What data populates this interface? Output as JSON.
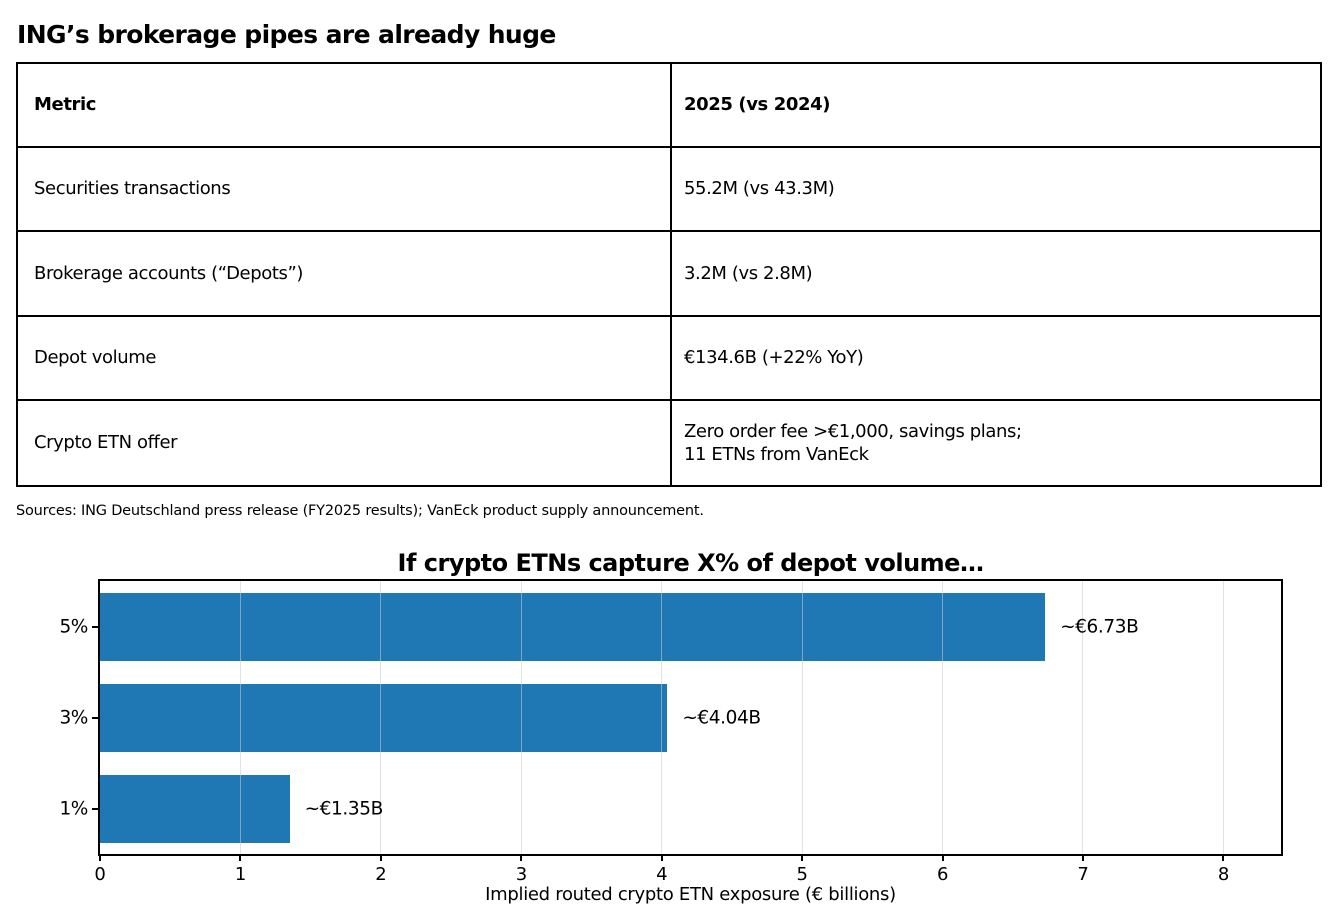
{
  "page_title": "ING’s brokerage pipes are already huge",
  "table": {
    "headers": [
      "Metric",
      "2025 (vs 2024)"
    ],
    "rows": [
      [
        "Securities transactions",
        "55.2M (vs 43.3M)"
      ],
      [
        "Brokerage accounts (“Depots”)",
        "3.2M (vs 2.8M)"
      ],
      [
        "Depot volume",
        "€134.6B (+22% YoY)"
      ],
      [
        "Crypto ETN offer",
        "Zero order fee >€1,000, savings plans;\n11 ETNs from VanEck"
      ]
    ]
  },
  "sources_note": "Sources: ING Deutschland press release (FY2025 results); VanEck product supply announcement.",
  "chart_data": {
    "type": "bar",
    "orientation": "horizontal",
    "title": "If crypto ETNs capture X% of depot volume…",
    "categories": [
      "5%",
      "3%",
      "1%"
    ],
    "values": [
      6.73,
      4.04,
      1.35
    ],
    "bar_labels": [
      "~€6.73B",
      "~€4.04B",
      "~€1.35B"
    ],
    "xlabel": "Implied routed crypto ETN exposure (€ billions)",
    "ylabel": "",
    "xticks": [
      0,
      1,
      2,
      3,
      4,
      5,
      6,
      7,
      8
    ],
    "xlim": [
      0,
      8.41
    ],
    "bar_color": "#1f77b4",
    "grid": true,
    "legend_position": "none"
  }
}
